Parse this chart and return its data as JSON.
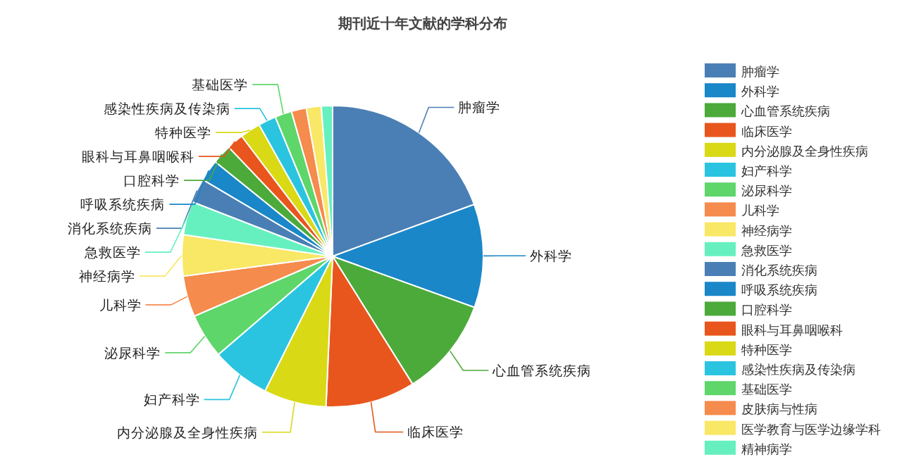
{
  "chart_data": {
    "type": "pie",
    "title": "期刊近十年文献的学科分布",
    "categories": [
      "肿瘤学",
      "外科学",
      "心血管系统疾病",
      "临床医学",
      "内分泌腺及全身性疾病",
      "妇产科学",
      "泌尿科学",
      "儿科学",
      "神经病学",
      "急救医学",
      "消化系统疾病",
      "呼吸系统疾病",
      "口腔科学",
      "眼科与耳鼻咽喉科",
      "特种医学",
      "感染性疾病及传染病",
      "基础医学",
      "皮肤病与性病",
      "医学教育与医学边缘学科",
      "精神病学"
    ],
    "values": [
      19.4,
      11.1,
      10.6,
      9.6,
      6.7,
      6.3,
      4.8,
      4.4,
      4.4,
      3.6,
      2.6,
      2.3,
      2.1,
      1.8,
      2.2,
      1.9,
      1.8,
      1.6,
      1.6,
      1.2
    ],
    "colors": [
      "#4a7fb5",
      "#1a87c8",
      "#4caa3a",
      "#e8561e",
      "#d9d916",
      "#2bc4e0",
      "#5ed66a",
      "#f58b4c",
      "#f9e766",
      "#66f0c0",
      "#4a7fb5",
      "#1a87c8",
      "#4caa3a",
      "#e8561e",
      "#d9d916",
      "#2bc4e0",
      "#5ed66a",
      "#f58b4c",
      "#f9e766",
      "#66f0c0"
    ],
    "value_labels": [
      "肿瘤学",
      "外科学",
      "心血管系统疾病",
      "临床医学",
      "内分泌腺及全身性疾病",
      "妇产科学",
      "泌尿科学",
      "儿科学",
      "神经病学",
      "急救医学",
      "消化系统疾病",
      "呼吸系统疾病",
      "口腔科学",
      "眼科与耳鼻咽喉科",
      "特种医学",
      "感染性疾病及传染病",
      "基础医学",
      null,
      null,
      null
    ],
    "legend": "right"
  }
}
